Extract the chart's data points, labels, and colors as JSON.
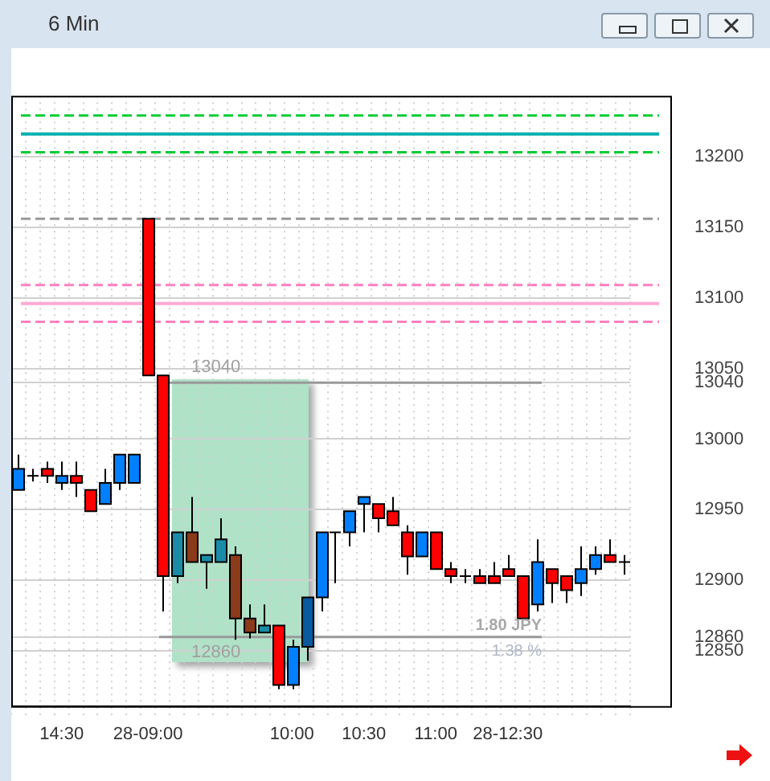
{
  "chart_data": {
    "type": "candlestick",
    "title": "6 Min",
    "categories": [
      null,
      null,
      null,
      "14:30",
      null,
      null,
      null,
      null,
      null,
      "28-09:00",
      null,
      null,
      null,
      null,
      null,
      null,
      null,
      null,
      null,
      "10:00",
      null,
      null,
      null,
      null,
      "10:30",
      null,
      null,
      null,
      null,
      "11:00",
      null,
      null,
      null,
      null,
      "28-12:30",
      null,
      null,
      null,
      null,
      null,
      null,
      null,
      null
    ],
    "ohlc": [
      [
        12964,
        12989,
        12964,
        12979
      ],
      [
        12974,
        12979,
        12970,
        12974
      ],
      [
        12979,
        12984,
        12969,
        12974
      ],
      [
        12969,
        12984,
        12964,
        12974
      ],
      [
        12974,
        12984,
        12959,
        12969
      ],
      [
        12964,
        12964,
        12949,
        12949
      ],
      [
        12954,
        12979,
        12954,
        12969
      ],
      [
        12969,
        12989,
        12964,
        12989
      ],
      [
        12969,
        12989,
        12969,
        12989
      ],
      [
        13156,
        13156,
        13045,
        13045
      ],
      [
        13045,
        13045,
        12878,
        12903
      ],
      [
        12903,
        12934,
        12898,
        12934
      ],
      [
        12934,
        12959,
        12913,
        12913
      ],
      [
        12913,
        12918,
        12894,
        12918
      ],
      [
        12913,
        12944,
        12913,
        12929
      ],
      [
        12918,
        12924,
        12858,
        12873
      ],
      [
        12873,
        12883,
        12859,
        12863
      ],
      [
        12863,
        12883,
        12863,
        12868
      ],
      [
        12868,
        12868,
        12823,
        12826
      ],
      [
        12826,
        12858,
        12823,
        12853
      ],
      [
        12853,
        12888,
        12843,
        12888
      ],
      [
        12888,
        12934,
        12878,
        12934
      ],
      [
        12934,
        12934,
        12898,
        12934
      ],
      [
        12934,
        12949,
        12924,
        12949
      ],
      [
        12954,
        12959,
        12934,
        12959
      ],
      [
        12954,
        12954,
        12934,
        12944
      ],
      [
        12949,
        12959,
        12939,
        12939
      ],
      [
        12934,
        12939,
        12904,
        12917
      ],
      [
        12917,
        12934,
        12917,
        12934
      ],
      [
        12934,
        12934,
        12908,
        12908
      ],
      [
        12908,
        12913,
        12898,
        12903
      ],
      [
        12903,
        12908,
        12898,
        12903
      ],
      [
        12903,
        12908,
        12898,
        12898
      ],
      [
        12903,
        12913,
        12898,
        12898
      ],
      [
        12908,
        12918,
        12903,
        12903
      ],
      [
        12903,
        12903,
        12873,
        12873
      ],
      [
        12883,
        12929,
        12878,
        12913
      ],
      [
        12908,
        12908,
        12884,
        12898
      ],
      [
        12903,
        12903,
        12884,
        12893
      ],
      [
        12898,
        12924,
        12889,
        12908
      ],
      [
        12908,
        12924,
        12904,
        12918
      ],
      [
        12918,
        12929,
        12913,
        12913
      ],
      [
        12913,
        12918,
        12904,
        12913
      ]
    ],
    "colors": [
      "#0080ff",
      "#000000",
      "#ff0000",
      "#0080ff",
      "#ff0000",
      "#ff0000",
      "#0080ff",
      "#0080ff",
      "#0080ff",
      "#ff0000",
      "#ff0000",
      "#1a8ca8",
      "#8b3a1a",
      "#1a8ca8",
      "#1a8ca8",
      "#8b3a1a",
      "#8b3a1a",
      "#1a8ca8",
      "#ff0000",
      "#0080ff",
      "#0a5aa0",
      "#0080ff",
      "#000000",
      "#0080ff",
      "#0080ff",
      "#ff0000",
      "#ff0000",
      "#ff0000",
      "#0080ff",
      "#ff0000",
      "#ff0000",
      "#000000",
      "#ff0000",
      "#ff0000",
      "#ff0000",
      "#ff0000",
      "#0080ff",
      "#ff0000",
      "#ff0000",
      "#0080ff",
      "#0080ff",
      "#ff0000",
      "#000000"
    ],
    "ylim": [
      12811,
      13243
    ],
    "yticks": [
      12850,
      {
        "value": 12860,
        "label": "12860"
      },
      12900,
      12950,
      13000,
      {
        "value": 13040,
        "label": "13040"
      },
      13050,
      13100,
      13150,
      13200
    ],
    "grid": true,
    "legend": false,
    "ref_lines": [
      {
        "axis": "y",
        "value": 13229,
        "color": "#00cc33",
        "line_style": "dashed"
      },
      {
        "axis": "y",
        "value": 13216,
        "color": "#00b0b0",
        "line_style": "solid"
      },
      {
        "axis": "y",
        "value": 13203,
        "color": "#00cc33",
        "line_style": "dashed"
      },
      {
        "axis": "y",
        "value": 13156,
        "color": "#999999",
        "line_style": "dashed"
      },
      {
        "axis": "y",
        "value": 13109,
        "color": "#ff80c0",
        "line_style": "dashed"
      },
      {
        "axis": "y",
        "value": 13096,
        "color": "#ffaad4",
        "line_style": "solid"
      },
      {
        "axis": "y",
        "value": 13083,
        "color": "#ff80c0",
        "line_style": "dashed"
      },
      {
        "axis": "y",
        "value": 13040,
        "label": "13040",
        "color": "#999999",
        "line_style": "solid"
      },
      {
        "axis": "y",
        "value": 12860,
        "label": "12860",
        "color": "#999999",
        "line_style": "solid"
      }
    ],
    "annotations": [
      "1.80 JPY",
      "1.38 %"
    ]
  }
}
